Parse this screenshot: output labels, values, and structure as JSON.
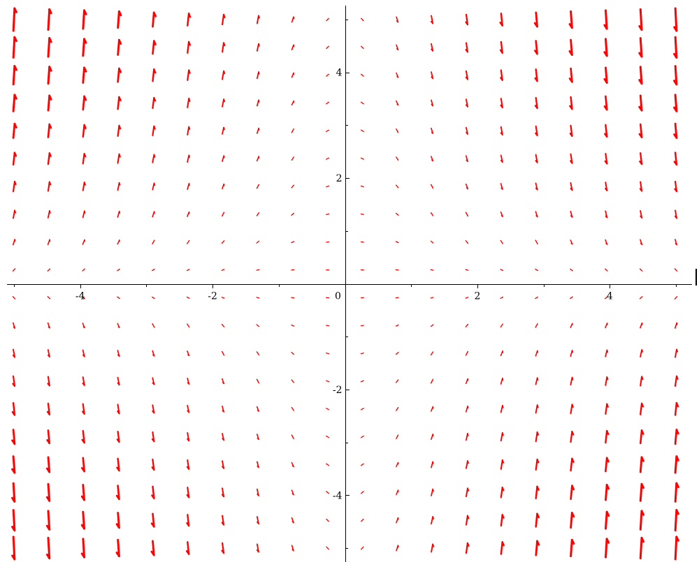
{
  "chart_data": {
    "type": "vector_field",
    "title": "",
    "xlabel": "",
    "ylabel": "",
    "xlim": [
      -5,
      5
    ],
    "ylim": [
      -5,
      5
    ],
    "grid_n": 20,
    "x_ticks": [
      -4,
      -2,
      0,
      2,
      4
    ],
    "y_ticks": [
      -4,
      -2,
      2,
      4
    ],
    "x_tick_labels": [
      "-4",
      "-2",
      "0",
      "2",
      "4"
    ],
    "y_tick_labels": [
      "-4",
      "-2",
      "2",
      "4"
    ],
    "minor_tick_step": 1,
    "grid": false,
    "legend": false,
    "field": {
      "dx": "1",
      "dy": "-x*y",
      "description": "direction field, arrows normalized to direction with magnitude-scaled length"
    },
    "arrow_color": "#ff0000"
  }
}
